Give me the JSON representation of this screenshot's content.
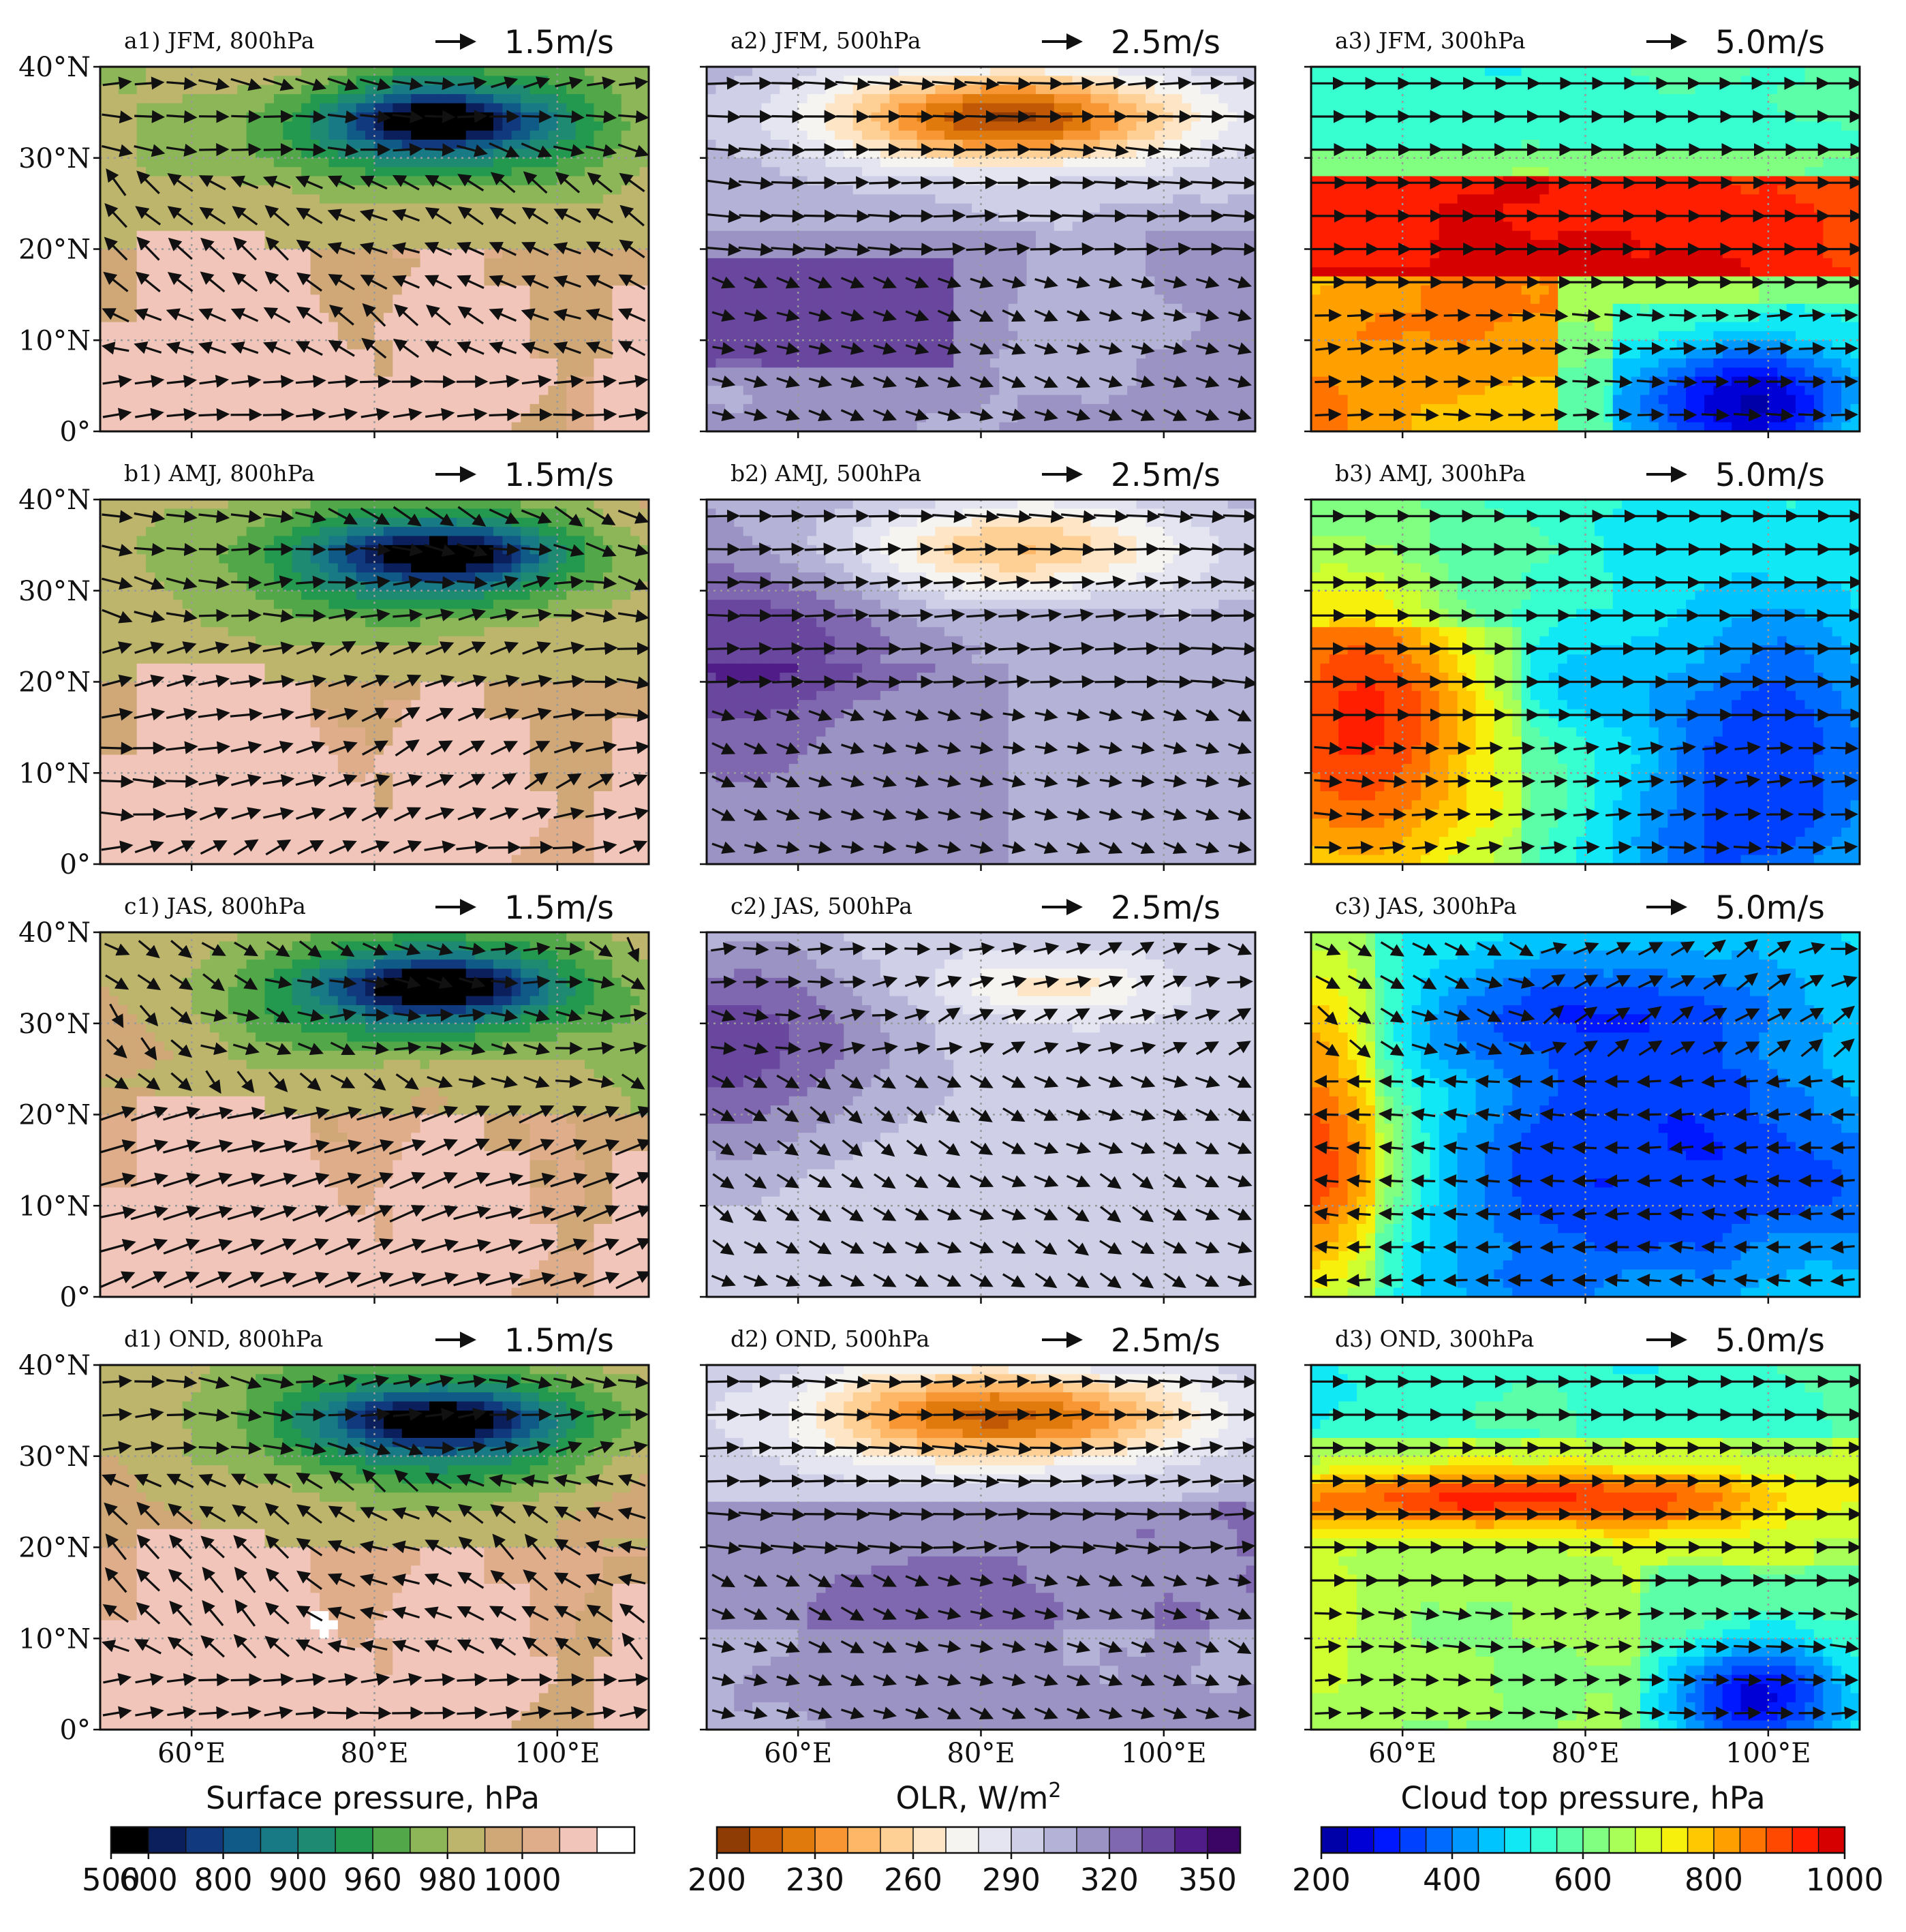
{
  "chart_data": {
    "type": "heatmap",
    "grid": {
      "rows": [
        {
          "season": "JFM",
          "panels": [
            {
              "id": "a1",
              "title": "a1) JFM, 800hPa",
              "field": "surface_pressure",
              "arrow_scale": "1.5m/s",
              "scale_value": 1.5
            },
            {
              "id": "a2",
              "title": "a2) JFM, 500hPa",
              "field": "olr",
              "arrow_scale": "2.5m/s",
              "scale_value": 2.5
            },
            {
              "id": "a3",
              "title": "a3) JFM, 300hPa",
              "field": "cloud_top_pressure",
              "arrow_scale": "5.0m/s",
              "scale_value": 5.0
            }
          ]
        },
        {
          "season": "AMJ",
          "panels": [
            {
              "id": "b1",
              "title": "b1) AMJ, 800hPa",
              "field": "surface_pressure",
              "arrow_scale": "1.5m/s",
              "scale_value": 1.5
            },
            {
              "id": "b2",
              "title": "b2) AMJ, 500hPa",
              "field": "olr",
              "arrow_scale": "2.5m/s",
              "scale_value": 2.5
            },
            {
              "id": "b3",
              "title": "b3) AMJ, 300hPa",
              "field": "cloud_top_pressure",
              "arrow_scale": "5.0m/s",
              "scale_value": 5.0
            }
          ]
        },
        {
          "season": "JAS",
          "panels": [
            {
              "id": "c1",
              "title": "c1) JAS, 800hPa",
              "field": "surface_pressure",
              "arrow_scale": "1.5m/s",
              "scale_value": 1.5
            },
            {
              "id": "c2",
              "title": "c2) JAS, 500hPa",
              "field": "olr",
              "arrow_scale": "2.5m/s",
              "scale_value": 2.5
            },
            {
              "id": "c3",
              "title": "c3) JAS, 300hPa",
              "field": "cloud_top_pressure",
              "arrow_scale": "5.0m/s",
              "scale_value": 5.0
            }
          ]
        },
        {
          "season": "OND",
          "panels": [
            {
              "id": "d1",
              "title": "d1) OND, 800hPa",
              "field": "surface_pressure",
              "arrow_scale": "1.5m/s",
              "scale_value": 1.5
            },
            {
              "id": "d2",
              "title": "d2) OND, 500hPa",
              "field": "olr",
              "arrow_scale": "2.5m/s",
              "scale_value": 2.5
            },
            {
              "id": "d3",
              "title": "d3) OND, 300hPa",
              "field": "cloud_top_pressure",
              "arrow_scale": "5.0m/s",
              "scale_value": 5.0
            }
          ]
        }
      ]
    },
    "lat_ticks": [
      "40°N",
      "30°N",
      "20°N",
      "10°N",
      "0°"
    ],
    "lat_values": [
      40,
      30,
      20,
      10,
      0
    ],
    "lon_ticks": [
      "60°E",
      "80°E",
      "100°E"
    ],
    "lon_values": [
      60,
      80,
      100
    ],
    "lon_range": [
      50,
      110
    ],
    "lat_range": [
      0,
      40
    ],
    "colorbars": [
      {
        "field": "surface_pressure",
        "title": "Surface pressure, hPa",
        "tick_labels": [
          "500",
          "600",
          "800",
          "900",
          "960",
          "980",
          "1000"
        ],
        "tick_index": [
          0,
          1,
          3,
          5,
          7,
          9,
          11
        ],
        "colors": [
          "#000000",
          "#0b1f5c",
          "#10397e",
          "#0f5a86",
          "#177a85",
          "#1e8a72",
          "#22994e",
          "#52a848",
          "#8cb657",
          "#bdb56c",
          "#d0a777",
          "#dfad8a",
          "#f1c5b9",
          "#ffffff"
        ]
      },
      {
        "field": "olr",
        "title": "OLR, W/m",
        "title_sup": "2",
        "tick_labels": [
          "200",
          "230",
          "260",
          "290",
          "320",
          "350"
        ],
        "tick_index": [
          0,
          3,
          6,
          9,
          12,
          15
        ],
        "colors": [
          "#8f3b04",
          "#c05805",
          "#e07a0c",
          "#f79633",
          "#fdb767",
          "#fed095",
          "#fde5c6",
          "#f5f4f1",
          "#e5e5f1",
          "#cfcfe7",
          "#b4b2d7",
          "#9a93c4",
          "#8068b0",
          "#6a479f",
          "#501c87",
          "#3a0565"
        ]
      },
      {
        "field": "cloud_top_pressure",
        "title": "Cloud top pressure, hPa",
        "tick_labels": [
          "200",
          "400",
          "600",
          "800",
          "1000"
        ],
        "tick_index": [
          0,
          5,
          10,
          15,
          20
        ],
        "colors": [
          "#0000a8",
          "#0000d6",
          "#0018ff",
          "#0040ff",
          "#006cff",
          "#0098ff",
          "#00c4ff",
          "#10e8f6",
          "#38ffd0",
          "#5cffa8",
          "#80ff80",
          "#a8ff58",
          "#d0ff30",
          "#f6f00c",
          "#ffc800",
          "#ffa000",
          "#ff7400",
          "#ff4800",
          "#ff1e00",
          "#d60000"
        ]
      }
    ]
  }
}
